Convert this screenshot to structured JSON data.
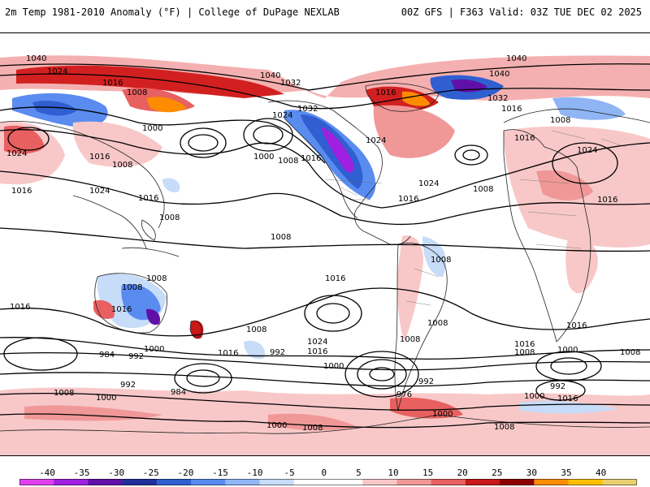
{
  "header": {
    "left_title": "2m Temp 1981-2010 Anomaly (°F) | College of DuPage NEXLAB",
    "right_title": "00Z GFS | F363 Valid: 03Z TUE DEC 02 2025"
  },
  "colorbar": {
    "labels": [
      "-40",
      "-35",
      "-30",
      "-25",
      "-20",
      "-15",
      "-10",
      "-5",
      "0",
      "5",
      "10",
      "15",
      "20",
      "25",
      "30",
      "35",
      "40"
    ],
    "colors": [
      "#e040f0",
      "#a020e0",
      "#6010a8",
      "#1f2f9a",
      "#2f5fd0",
      "#5a8cf0",
      "#8fb5f5",
      "#c6dcf8",
      "#ffffff",
      "#ffffff",
      "#f8c8c8",
      "#f09898",
      "#e86060",
      "#c81818",
      "#8c0000",
      "#ff8c00",
      "#ffc000",
      "#e8d070"
    ]
  },
  "isobar_labels": {
    "l1040": "1040",
    "l1032": "1032",
    "l1024": "1024",
    "l1016": "1016",
    "l1008": "1008",
    "l1000": "1000",
    "l992": "992",
    "l984": "984",
    "l976": "976"
  }
}
